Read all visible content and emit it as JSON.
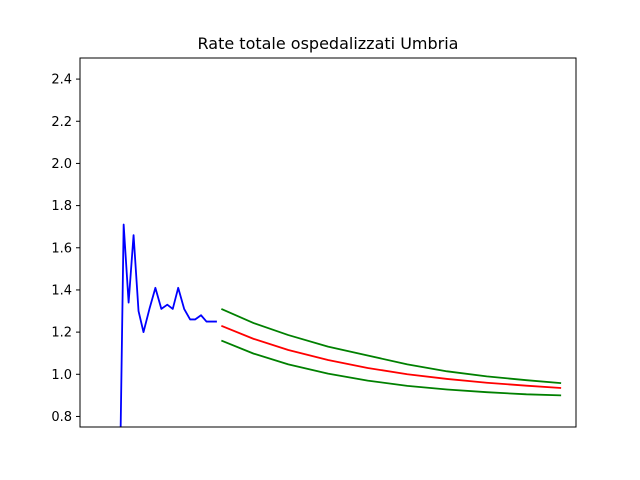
{
  "chart_data": {
    "type": "line",
    "title": "Rate totale ospedalizzati Umbria",
    "xlabel": "",
    "ylabel": "",
    "ylim": [
      0.75,
      2.5
    ],
    "xlim": [
      0,
      100
    ],
    "yticks": [
      "0.8",
      "1.0",
      "1.2",
      "1.4",
      "1.6",
      "1.8",
      "2.0",
      "2.2",
      "2.4"
    ],
    "ytick_values": [
      0.8,
      1.0,
      1.2,
      1.4,
      1.6,
      1.8,
      2.0,
      2.2,
      2.4
    ],
    "grid": false,
    "series": [
      {
        "color": "#0000ff",
        "x": [
          8.2,
          8.8,
          9.8,
          10.8,
          11.8,
          12.8,
          14.0,
          15.2,
          16.4,
          17.6,
          18.7,
          19.8,
          21.0,
          22.2,
          23.2,
          24.4,
          25.5,
          26.6,
          27.6
        ],
        "y": [
          0.75,
          1.71,
          1.34,
          1.66,
          1.3,
          1.2,
          1.31,
          1.41,
          1.31,
          1.33,
          1.31,
          1.41,
          1.31,
          1.26,
          1.26,
          1.28,
          1.25,
          1.25,
          1.25
        ]
      },
      {
        "color": "#ff0000",
        "x": [
          28.5,
          35,
          42,
          50,
          58,
          66,
          74,
          82,
          90,
          97
        ],
        "y": [
          1.23,
          1.168,
          1.115,
          1.068,
          1.03,
          1.0,
          0.978,
          0.96,
          0.946,
          0.935
        ]
      },
      {
        "color": "#008000",
        "x": [
          28.5,
          35,
          42,
          50,
          58,
          66,
          74,
          82,
          90,
          97
        ],
        "y": [
          1.31,
          1.243,
          1.186,
          1.131,
          1.089,
          1.047,
          1.014,
          0.99,
          0.972,
          0.958
        ]
      },
      {
        "color": "#008000",
        "x": [
          28.5,
          35,
          42,
          50,
          58,
          66,
          74,
          82,
          90,
          97
        ],
        "y": [
          1.16,
          1.098,
          1.047,
          1.003,
          0.97,
          0.945,
          0.928,
          0.915,
          0.905,
          0.9
        ]
      }
    ]
  }
}
